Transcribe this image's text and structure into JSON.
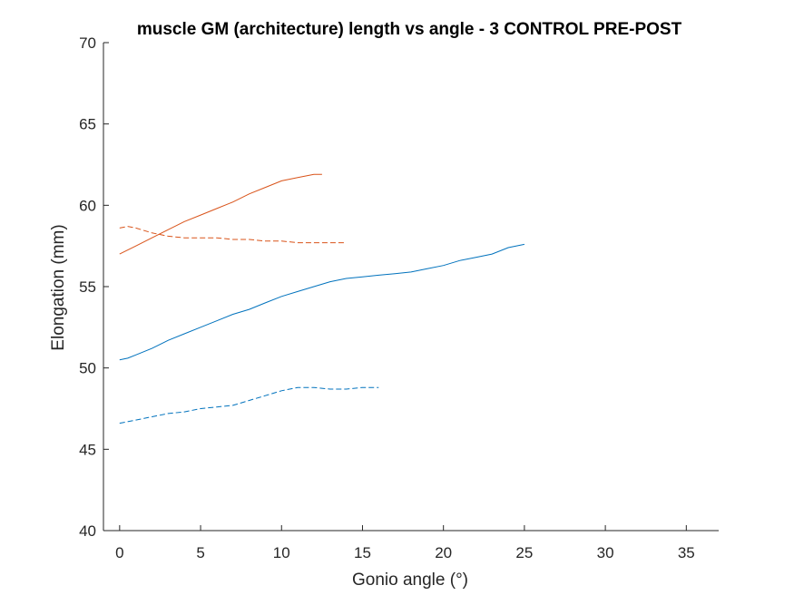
{
  "chart_data": {
    "type": "line",
    "title": "muscle GM (architecture) length vs angle - 3 CONTROL PRE-POST",
    "xlabel": "Gonio angle (°)",
    "ylabel": "Elongation (mm)",
    "xlim": [
      -1,
      37
    ],
    "ylim": [
      40,
      70
    ],
    "xticks": [
      0,
      5,
      10,
      15,
      20,
      25,
      30,
      35
    ],
    "yticks": [
      40,
      45,
      50,
      55,
      60,
      65,
      70
    ],
    "grid": false,
    "legend": "none",
    "series": [
      {
        "color": "#0072BD",
        "dash": "solid",
        "x": [
          0,
          0.5,
          1,
          2,
          3,
          4,
          5,
          6,
          7,
          8,
          9,
          10,
          11,
          12,
          13,
          14,
          15,
          16,
          17,
          18,
          19,
          20,
          21,
          22,
          23,
          24,
          25
        ],
        "y": [
          50.5,
          50.6,
          50.8,
          51.2,
          51.7,
          52.1,
          52.5,
          52.9,
          53.3,
          53.6,
          54.0,
          54.4,
          54.7,
          55.0,
          55.3,
          55.5,
          55.6,
          55.7,
          55.8,
          55.9,
          56.1,
          56.3,
          56.6,
          56.8,
          57.0,
          57.4,
          57.6
        ]
      },
      {
        "color": "#0072BD",
        "dash": "dashed",
        "x": [
          0,
          1,
          2,
          3,
          4,
          5,
          6,
          7,
          8,
          9,
          10,
          11,
          12,
          13,
          14,
          15,
          16
        ],
        "y": [
          46.6,
          46.8,
          47.0,
          47.2,
          47.3,
          47.5,
          47.6,
          47.7,
          48.0,
          48.3,
          48.6,
          48.8,
          48.8,
          48.7,
          48.7,
          48.8,
          48.8
        ]
      },
      {
        "color": "#D95319",
        "dash": "solid",
        "x": [
          0,
          1,
          2,
          3,
          4,
          5,
          6,
          7,
          8,
          9,
          10,
          11,
          12,
          12.5
        ],
        "y": [
          57.0,
          57.5,
          58.0,
          58.5,
          59.0,
          59.4,
          59.8,
          60.2,
          60.7,
          61.1,
          61.5,
          61.7,
          61.9,
          61.9
        ]
      },
      {
        "color": "#D95319",
        "dash": "dashed",
        "x": [
          0,
          0.5,
          1,
          2,
          3,
          4,
          5,
          6,
          7,
          8,
          9,
          10,
          11,
          12,
          13,
          14
        ],
        "y": [
          58.6,
          58.7,
          58.6,
          58.3,
          58.1,
          58.0,
          58.0,
          58.0,
          57.9,
          57.9,
          57.8,
          57.8,
          57.7,
          57.7,
          57.7,
          57.7
        ]
      }
    ]
  }
}
